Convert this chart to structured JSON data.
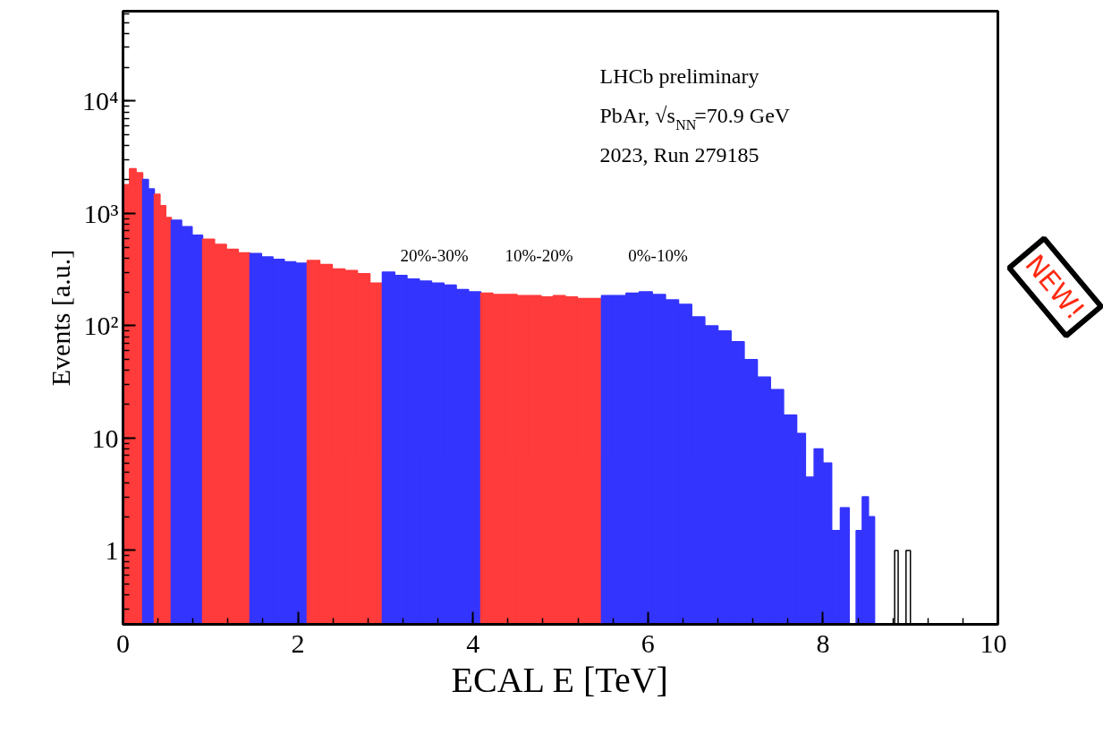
{
  "chart_data": {
    "type": "histogram",
    "xlabel": "ECAL E [TeV]",
    "ylabel": "Events [a.u.]",
    "bins": [
      0,
      0.075,
      0.15,
      0.225,
      0.29,
      0.358,
      0.423,
      0.488,
      0.552,
      0.67,
      0.79,
      0.91,
      1.046,
      1.181,
      1.317,
      1.452,
      1.583,
      1.714,
      1.844,
      1.975,
      2.106,
      2.249,
      2.392,
      2.536,
      2.679,
      2.822,
      2.965,
      3.106,
      3.246,
      3.387,
      3.527,
      3.668,
      3.809,
      3.949,
      4.09,
      4.228,
      4.366,
      4.504,
      4.642,
      4.78,
      4.918,
      5.056,
      5.194,
      5.332,
      5.47,
      5.6,
      5.75,
      5.9,
      6.05,
      6.2,
      6.35,
      6.5,
      6.65,
      6.8,
      6.95,
      7.1,
      7.25,
      7.4,
      7.55,
      7.7,
      7.8,
      7.9,
      8.0,
      8.1,
      8.2,
      8.3,
      8.38,
      8.45,
      8.52,
      8.59,
      8.82,
      8.86,
      8.95,
      9.0
    ],
    "values": [
      1800,
      2500,
      2300,
      2000,
      1650,
      1480,
      1170,
      920,
      870,
      760,
      640,
      590,
      530,
      480,
      445,
      440,
      410,
      390,
      370,
      360,
      380,
      350,
      320,
      310,
      290,
      240,
      300,
      280,
      260,
      250,
      240,
      230,
      210,
      200,
      195,
      190,
      190,
      185,
      185,
      180,
      185,
      180,
      175,
      175,
      185,
      185,
      195,
      200,
      190,
      170,
      155,
      120,
      100,
      90,
      72,
      50,
      35,
      27,
      16,
      11,
      4.5,
      8,
      6,
      1.5,
      2.4,
      null,
      1.5,
      3,
      2,
      null,
      1,
      null,
      1
    ],
    "colors": [
      "#ff3b3b",
      "#ff3b3b",
      "#ff3b3b",
      "#3434ff",
      "#3434ff",
      "#ff3b3b",
      "#ff3b3b",
      "#ff3b3b",
      "#3434ff",
      "#3434ff",
      "#3434ff",
      "#ff3b3b",
      "#ff3b3b",
      "#ff3b3b",
      "#ff3b3b",
      "#3434ff",
      "#3434ff",
      "#3434ff",
      "#3434ff",
      "#3434ff",
      "#ff3b3b",
      "#ff3b3b",
      "#ff3b3b",
      "#ff3b3b",
      "#ff3b3b",
      "#ff3b3b",
      "#3434ff",
      "#3434ff",
      "#3434ff",
      "#3434ff",
      "#3434ff",
      "#3434ff",
      "#3434ff",
      "#3434ff",
      "#ff3b3b",
      "#ff3b3b",
      "#ff3b3b",
      "#ff3b3b",
      "#ff3b3b",
      "#ff3b3b",
      "#ff3b3b",
      "#ff3b3b",
      "#ff3b3b",
      "#ff3b3b",
      "#3434ff",
      "#3434ff",
      "#3434ff",
      "#3434ff",
      "#3434ff",
      "#3434ff",
      "#3434ff",
      "#3434ff",
      "#3434ff",
      "#3434ff",
      "#3434ff",
      "#3434ff",
      "#3434ff",
      "#3434ff",
      "#3434ff",
      "#3434ff",
      "#3434ff",
      "#3434ff",
      "#3434ff",
      "#3434ff",
      "#3434ff",
      "#3434ff",
      "#3434ff",
      "#3434ff",
      "#3434ff",
      "#ffffff",
      "#ffffff",
      "#ffffff",
      "#ffffff"
    ],
    "log": "y",
    "xlim": [
      0,
      10
    ],
    "xticks": [
      0,
      2,
      4,
      6,
      8,
      10
    ],
    "ylim": [
      0.22,
      63000
    ],
    "yticks": [
      1,
      10,
      {
        "value": 100,
        "label": "10²"
      },
      {
        "value": 1000,
        "label": "10³"
      },
      {
        "value": 10000,
        "label": "10⁴"
      }
    ],
    "grid": false,
    "annotations": [
      "LHCb preliminary",
      "PbAr, √s$_{NN}$=70.9 GeV",
      "2023, Run 279185",
      "NEW!",
      "20%-30%",
      "10%-20%",
      "0%-10%"
    ]
  }
}
